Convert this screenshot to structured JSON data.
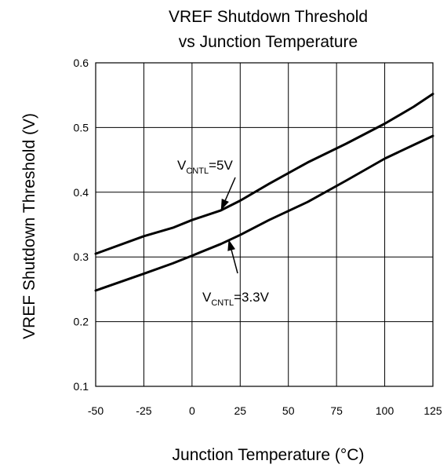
{
  "chart_data": {
    "type": "line",
    "title_lines": [
      "VREF Shutdown Threshold",
      "vs Junction Temperature"
    ],
    "xlabel": "Junction Temperature (°C)",
    "ylabel": "VREF Shutdown Threshold (V)",
    "xlim": [
      -50,
      125
    ],
    "ylim": [
      0.1,
      0.6
    ],
    "xticks": [
      "-50",
      "-25",
      "0",
      "25",
      "50",
      "75",
      "100",
      "125"
    ],
    "yticks": [
      "0.1",
      "0.2",
      "0.3",
      "0.4",
      "0.5",
      "0.6"
    ],
    "grid": true,
    "series": [
      {
        "name": "VCNTL=5V",
        "x": [
          -50,
          -25,
          -10,
          0,
          15,
          25,
          40,
          60,
          80,
          100,
          115,
          125
        ],
        "y": [
          0.305,
          0.332,
          0.345,
          0.357,
          0.372,
          0.387,
          0.413,
          0.446,
          0.475,
          0.506,
          0.532,
          0.552
        ]
      },
      {
        "name": "VCNTL=3.3V",
        "x": [
          -50,
          -25,
          -10,
          0,
          15,
          25,
          40,
          60,
          80,
          100,
          115,
          125
        ],
        "y": [
          0.248,
          0.274,
          0.29,
          0.302,
          0.32,
          0.334,
          0.357,
          0.385,
          0.418,
          0.452,
          0.473,
          0.487
        ]
      }
    ],
    "annotations": [
      {
        "main": "V",
        "sub": "CNTL",
        "rest": "=5V",
        "arrow_to": {
          "x": 15,
          "y": 0.372
        }
      },
      {
        "main": "V",
        "sub": "CNTL",
        "rest": "=3.3V",
        "arrow_to": {
          "x": 19,
          "y": 0.327
        }
      }
    ]
  }
}
